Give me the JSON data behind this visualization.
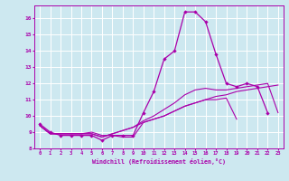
{
  "xlabel": "Windchill (Refroidissement éolien,°C)",
  "background_color": "#cde8f0",
  "line_color": "#aa00aa",
  "grid_color": "#ffffff",
  "xlim": [
    -0.5,
    23.5
  ],
  "ylim": [
    8.0,
    16.8
  ],
  "yticks": [
    8,
    9,
    10,
    11,
    12,
    13,
    14,
    15,
    16
  ],
  "xticks": [
    0,
    1,
    2,
    3,
    4,
    5,
    6,
    7,
    8,
    9,
    10,
    11,
    12,
    13,
    14,
    15,
    16,
    17,
    18,
    19,
    20,
    21,
    22,
    23
  ],
  "series_main_x": [
    0,
    1,
    2,
    3,
    4,
    5,
    6,
    7,
    8,
    9,
    10,
    11,
    12,
    13,
    14,
    15,
    16,
    17,
    18,
    19,
    20,
    21,
    22
  ],
  "series_main_y": [
    9.5,
    9.0,
    8.8,
    8.8,
    8.8,
    8.8,
    8.5,
    8.8,
    8.8,
    8.8,
    10.2,
    11.5,
    13.5,
    14.0,
    16.4,
    16.4,
    15.8,
    13.8,
    12.0,
    11.8,
    12.0,
    11.8,
    10.2
  ],
  "series_diag1_x": [
    0,
    1,
    2,
    3,
    4,
    5,
    6,
    7,
    8,
    9,
    10,
    11,
    12,
    13,
    14,
    15,
    16,
    17,
    18,
    19,
    20,
    21,
    22,
    23
  ],
  "series_diag1_y": [
    9.4,
    8.9,
    8.9,
    8.9,
    8.9,
    8.9,
    8.7,
    8.9,
    9.1,
    9.3,
    9.6,
    9.8,
    10.0,
    10.3,
    10.6,
    10.8,
    11.0,
    11.2,
    11.3,
    11.5,
    11.6,
    11.7,
    11.8,
    11.9
  ],
  "series_diag2_x": [
    0,
    1,
    2,
    3,
    4,
    5,
    6,
    7,
    8,
    9,
    10,
    11,
    12,
    13,
    14,
    15,
    16,
    17,
    18,
    19,
    20,
    21,
    22,
    23
  ],
  "series_diag2_y": [
    9.4,
    8.9,
    8.9,
    8.9,
    8.9,
    8.9,
    8.7,
    8.9,
    9.1,
    9.3,
    9.7,
    10.0,
    10.4,
    10.8,
    11.3,
    11.6,
    11.7,
    11.6,
    11.6,
    11.7,
    11.8,
    11.9,
    12.0,
    10.2
  ],
  "series_low_x": [
    0,
    1,
    2,
    3,
    4,
    5,
    6,
    7,
    8,
    9,
    10,
    11,
    12,
    13,
    14,
    15,
    16,
    17,
    18,
    19
  ],
  "series_low_y": [
    9.4,
    8.9,
    8.9,
    8.9,
    8.9,
    9.0,
    8.8,
    8.8,
    8.7,
    8.7,
    9.6,
    9.8,
    10.0,
    10.3,
    10.6,
    10.8,
    11.0,
    11.0,
    11.1,
    9.8
  ]
}
